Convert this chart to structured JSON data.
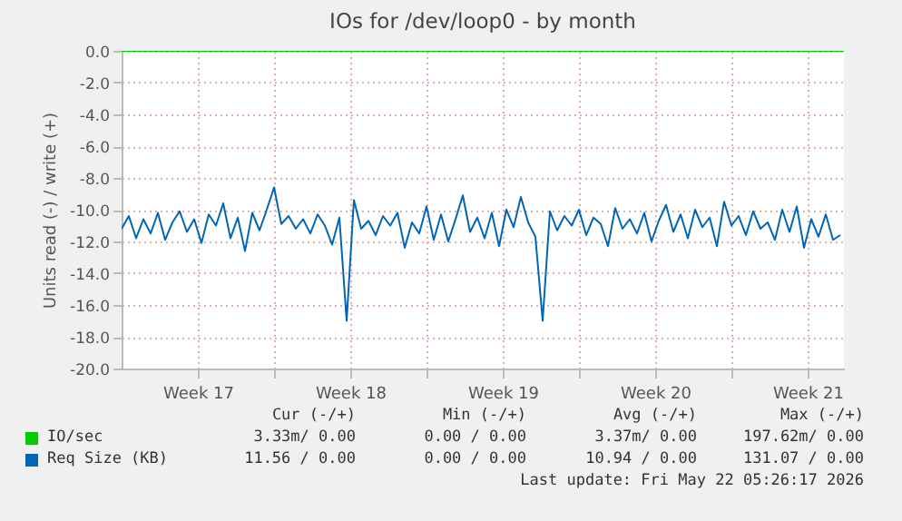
{
  "chart_data": {
    "type": "line",
    "title": "IOs for /dev/loop0 - by month",
    "ylabel": "Units read (-) / write (+)",
    "x": [
      "2026-04-20T00:00",
      "2026-04-20T08:00",
      "2026-04-20T16:00",
      "2026-04-21T00:00",
      "2026-04-21T08:00",
      "2026-04-21T16:00",
      "2026-04-22T00:00",
      "2026-04-22T08:00",
      "2026-04-22T16:00",
      "2026-04-23T00:00",
      "2026-04-23T08:00",
      "2026-04-23T16:00",
      "2026-04-24T00:00",
      "2026-04-24T08:00",
      "2026-04-24T16:00",
      "2026-04-25T00:00",
      "2026-04-25T08:00",
      "2026-04-25T16:00",
      "2026-04-26T00:00",
      "2026-04-26T08:00",
      "2026-04-26T16:00",
      "2026-04-27T00:00",
      "2026-04-27T08:00",
      "2026-04-27T16:00",
      "2026-04-28T00:00",
      "2026-04-28T08:00",
      "2026-04-28T16:00",
      "2026-04-29T00:00",
      "2026-04-29T08:00",
      "2026-04-29T16:00",
      "2026-04-30T00:00",
      "2026-04-30T08:00",
      "2026-04-30T16:00",
      "2026-05-01T00:00",
      "2026-05-01T08:00",
      "2026-05-01T16:00",
      "2026-05-02T00:00",
      "2026-05-02T08:00",
      "2026-05-02T16:00",
      "2026-05-03T00:00",
      "2026-05-03T08:00",
      "2026-05-03T16:00",
      "2026-05-04T00:00",
      "2026-05-04T08:00",
      "2026-05-04T16:00",
      "2026-05-05T00:00",
      "2026-05-05T08:00",
      "2026-05-05T16:00",
      "2026-05-06T00:00",
      "2026-05-06T08:00",
      "2026-05-06T16:00",
      "2026-05-07T00:00",
      "2026-05-07T08:00",
      "2026-05-07T16:00",
      "2026-05-08T00:00",
      "2026-05-08T08:00",
      "2026-05-08T16:00",
      "2026-05-09T00:00",
      "2026-05-09T08:00",
      "2026-05-09T16:00",
      "2026-05-10T00:00",
      "2026-05-10T08:00",
      "2026-05-10T16:00",
      "2026-05-11T00:00",
      "2026-05-11T08:00",
      "2026-05-11T16:00",
      "2026-05-12T00:00",
      "2026-05-12T08:00",
      "2026-05-12T16:00",
      "2026-05-13T00:00",
      "2026-05-13T08:00",
      "2026-05-13T16:00",
      "2026-05-14T00:00",
      "2026-05-14T08:00",
      "2026-05-14T16:00",
      "2026-05-15T00:00",
      "2026-05-15T08:00",
      "2026-05-15T16:00",
      "2026-05-16T00:00",
      "2026-05-16T08:00",
      "2026-05-16T16:00",
      "2026-05-17T00:00",
      "2026-05-17T08:00",
      "2026-05-17T16:00",
      "2026-05-18T00:00",
      "2026-05-18T08:00",
      "2026-05-18T16:00",
      "2026-05-19T00:00",
      "2026-05-19T08:00",
      "2026-05-19T16:00",
      "2026-05-20T00:00",
      "2026-05-20T08:00",
      "2026-05-20T16:00",
      "2026-05-21T00:00",
      "2026-05-21T08:00",
      "2026-05-21T16:00",
      "2026-05-22T00:00",
      "2026-05-22T08:00",
      "2026-05-22T16:00",
      "2026-05-23T00:00"
    ],
    "series": [
      {
        "name": "IO/sec",
        "color": "#00cc00",
        "x": [
          "2026-04-20T00:00",
          "2026-05-23T04:00"
        ],
        "values": [
          0,
          0
        ]
      },
      {
        "name": "Req Size (KB)",
        "color": "#0066b3",
        "values": [
          -11.2,
          -10.4,
          -11.8,
          -10.6,
          -11.5,
          -10.2,
          -11.9,
          -10.8,
          -10.1,
          -11.4,
          -10.6,
          -12.1,
          -10.3,
          -11.0,
          -9.6,
          -11.8,
          -10.5,
          -12.6,
          -10.2,
          -11.3,
          -10.0,
          -8.6,
          -10.9,
          -10.4,
          -11.2,
          -10.6,
          -11.5,
          -10.3,
          -11.0,
          -12.2,
          -10.5,
          -17.0,
          -9.4,
          -11.2,
          -10.7,
          -11.6,
          -10.4,
          -11.0,
          -10.2,
          -12.4,
          -10.8,
          -11.5,
          -9.8,
          -11.9,
          -10.3,
          -12.0,
          -10.6,
          -9.1,
          -11.4,
          -10.5,
          -11.8,
          -10.2,
          -12.3,
          -10.0,
          -11.1,
          -9.2,
          -10.8,
          -11.7,
          -17.0,
          -10.1,
          -11.3,
          -10.4,
          -11.0,
          -10.0,
          -11.6,
          -10.5,
          -10.9,
          -12.3,
          -9.9,
          -11.2,
          -10.6,
          -11.5,
          -10.2,
          -12.0,
          -10.7,
          -9.7,
          -11.4,
          -10.3,
          -11.8,
          -10.0,
          -11.1,
          -10.5,
          -12.3,
          -9.5,
          -11.0,
          -10.4,
          -11.6,
          -10.1,
          -11.2,
          -10.8,
          -11.9,
          -10.0,
          -11.4,
          -9.8,
          -12.4,
          -10.6,
          -11.7,
          -10.3,
          -11.9,
          -11.6
        ]
      }
    ],
    "xlim": [
      "2026-04-20T00:00",
      "2026-05-23T04:00"
    ],
    "xticks": [
      {
        "value": "2026-04-23T12:00",
        "label": "Week 17"
      },
      {
        "value": "2026-04-27T00:00",
        "label": null
      },
      {
        "value": "2026-04-30T12:00",
        "label": "Week 18"
      },
      {
        "value": "2026-05-04T00:00",
        "label": null
      },
      {
        "value": "2026-05-07T12:00",
        "label": "Week 19"
      },
      {
        "value": "2026-05-11T00:00",
        "label": null
      },
      {
        "value": "2026-05-14T12:00",
        "label": "Week 20"
      },
      {
        "value": "2026-05-18T00:00",
        "label": null
      },
      {
        "value": "2026-05-21T12:00",
        "label": "Week 21"
      }
    ],
    "ylim": [
      -20,
      0
    ],
    "yticks": [
      {
        "value": -20,
        "label": "-20.0"
      },
      {
        "value": -18,
        "label": "-18.0"
      },
      {
        "value": -16,
        "label": "-16.0"
      },
      {
        "value": -14,
        "label": "-14.0"
      },
      {
        "value": -12,
        "label": "-12.0"
      },
      {
        "value": -10,
        "label": "-10.0"
      },
      {
        "value": -8,
        "label": "-8.0"
      },
      {
        "value": -6,
        "label": "-6.0"
      },
      {
        "value": -4,
        "label": "-4.0"
      },
      {
        "value": -2,
        "label": "-2.0"
      },
      {
        "value": 0,
        "label": "0.0"
      }
    ],
    "grid": true,
    "legend": "bottom",
    "annotations": [
      "Cur (-/+)",
      "Min (-/+)",
      "Avg (-/+)",
      "Max (-/+)",
      "3.33m/ 0.00",
      "0.00 / 0.00",
      "3.37m/ 0.00",
      "197.62m/ 0.00",
      "11.56 / 0.00",
      "0.00 / 0.00",
      "10.94 / 0.00",
      "131.07 / 0.00",
      "Last update: Fri May 22 05:26:17 2026"
    ]
  }
}
